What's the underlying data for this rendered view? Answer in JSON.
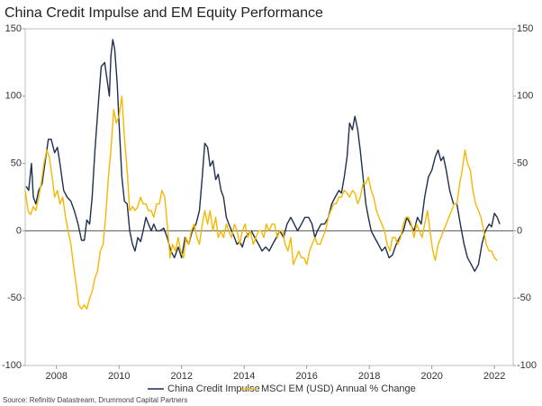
{
  "chart_data": {
    "type": "line",
    "title": "China Credit Impulse and EM Equity Performance",
    "source": "Source: Refinitiv Datastream, Drummond Capital Partners",
    "xlim": [
      2007,
      2022.6
    ],
    "xticks": [
      2008,
      2010,
      2012,
      2014,
      2016,
      2018,
      2020,
      2022
    ],
    "ylim": [
      -100,
      150
    ],
    "yticks": [
      -100,
      -50,
      0,
      50,
      100,
      150
    ],
    "y2lim": [
      -100,
      150
    ],
    "y2ticks": [
      -100,
      -50,
      0,
      50,
      100,
      150
    ],
    "zero_line": true,
    "legend": "bottom",
    "series": [
      {
        "name": "China Credit Impulse",
        "color": "#1f2f4f",
        "x": [
          2007.03,
          2007.11,
          2007.2,
          2007.26,
          2007.34,
          2007.43,
          2007.54,
          2007.66,
          2007.74,
          2007.83,
          2007.94,
          2008.03,
          2008.11,
          2008.23,
          2008.34,
          2008.46,
          2008.57,
          2008.69,
          2008.8,
          2008.89,
          2008.97,
          2009.06,
          2009.14,
          2009.23,
          2009.34,
          2009.43,
          2009.54,
          2009.63,
          2009.69,
          2009.74,
          2009.8,
          2009.86,
          2009.94,
          2010.0,
          2010.09,
          2010.17,
          2010.26,
          2010.34,
          2010.43,
          2010.51,
          2010.6,
          2010.69,
          2010.77,
          2010.86,
          2010.94,
          2011.03,
          2011.11,
          2011.2,
          2011.31,
          2011.43,
          2011.54,
          2011.66,
          2011.77,
          2011.89,
          2012.0,
          2012.11,
          2012.23,
          2012.34,
          2012.46,
          2012.57,
          2012.66,
          2012.74,
          2012.83,
          2012.91,
          2013.0,
          2013.09,
          2013.17,
          2013.26,
          2013.34,
          2013.43,
          2013.51,
          2013.6,
          2013.69,
          2013.77,
          2013.86,
          2013.94,
          2014.03,
          2014.11,
          2014.23,
          2014.34,
          2014.46,
          2014.57,
          2014.69,
          2014.8,
          2014.91,
          2015.03,
          2015.14,
          2015.26,
          2015.37,
          2015.49,
          2015.6,
          2015.71,
          2015.83,
          2015.94,
          2016.06,
          2016.17,
          2016.26,
          2016.34,
          2016.46,
          2016.57,
          2016.69,
          2016.8,
          2016.91,
          2017.03,
          2017.11,
          2017.2,
          2017.29,
          2017.37,
          2017.46,
          2017.54,
          2017.63,
          2017.71,
          2017.8,
          2017.89,
          2017.97,
          2018.06,
          2018.17,
          2018.29,
          2018.4,
          2018.51,
          2018.63,
          2018.74,
          2018.86,
          2018.97,
          2019.09,
          2019.2,
          2019.31,
          2019.43,
          2019.54,
          2019.66,
          2019.77,
          2019.89,
          2020.0,
          2020.11,
          2020.2,
          2020.29,
          2020.37,
          2020.46,
          2020.57,
          2020.69,
          2020.8,
          2020.91,
          2021.03,
          2021.14,
          2021.26,
          2021.37,
          2021.49,
          2021.6,
          2021.71,
          2021.83,
          2021.91,
          2022.0,
          2022.09,
          2022.17
        ],
        "values": [
          33,
          30,
          50,
          25,
          20,
          30,
          35,
          55,
          68,
          68,
          58,
          62,
          50,
          30,
          25,
          22,
          15,
          5,
          -7,
          -7,
          8,
          5,
          25,
          60,
          95,
          122,
          125,
          110,
          100,
          130,
          142,
          135,
          110,
          80,
          40,
          22,
          20,
          0,
          -10,
          -15,
          -5,
          -8,
          0,
          10,
          5,
          0,
          5,
          0,
          0,
          2,
          -5,
          -15,
          -20,
          -12,
          -20,
          -5,
          -10,
          0,
          5,
          15,
          40,
          65,
          62,
          48,
          52,
          38,
          42,
          30,
          25,
          10,
          5,
          0,
          -5,
          -10,
          -8,
          -12,
          -5,
          -3,
          0,
          -5,
          -10,
          -15,
          -12,
          -15,
          -10,
          -5,
          0,
          -5,
          5,
          10,
          5,
          0,
          5,
          10,
          10,
          5,
          -5,
          0,
          5,
          5,
          10,
          20,
          25,
          30,
          28,
          40,
          55,
          80,
          75,
          85,
          75,
          60,
          40,
          20,
          10,
          0,
          -5,
          -10,
          -15,
          -12,
          -20,
          -18,
          -10,
          -5,
          0,
          10,
          5,
          0,
          10,
          5,
          25,
          40,
          45,
          55,
          60,
          52,
          55,
          45,
          30,
          20,
          20,
          5,
          -10,
          -20,
          -25,
          -30,
          -25,
          -10,
          0,
          5,
          3,
          13,
          10,
          5
        ]
      },
      {
        "name": "MSCI EM (USD) Annual % Change",
        "color": "#f5b800",
        "axis": "y2",
        "x": [
          2007.0,
          2007.09,
          2007.17,
          2007.26,
          2007.34,
          2007.43,
          2007.51,
          2007.6,
          2007.69,
          2007.77,
          2007.86,
          2007.94,
          2008.03,
          2008.11,
          2008.2,
          2008.29,
          2008.37,
          2008.46,
          2008.54,
          2008.63,
          2008.71,
          2008.8,
          2008.89,
          2008.97,
          2009.06,
          2009.14,
          2009.23,
          2009.31,
          2009.4,
          2009.49,
          2009.57,
          2009.66,
          2009.74,
          2009.83,
          2009.91,
          2010.0,
          2010.09,
          2010.17,
          2010.26,
          2010.34,
          2010.43,
          2010.51,
          2010.6,
          2010.69,
          2010.77,
          2010.86,
          2010.94,
          2011.03,
          2011.11,
          2011.2,
          2011.29,
          2011.37,
          2011.46,
          2011.54,
          2011.63,
          2011.71,
          2011.8,
          2011.89,
          2011.97,
          2012.06,
          2012.14,
          2012.23,
          2012.31,
          2012.4,
          2012.49,
          2012.57,
          2012.66,
          2012.74,
          2012.83,
          2012.91,
          2013.0,
          2013.09,
          2013.17,
          2013.26,
          2013.34,
          2013.43,
          2013.51,
          2013.6,
          2013.69,
          2013.77,
          2013.86,
          2013.94,
          2014.03,
          2014.11,
          2014.2,
          2014.29,
          2014.37,
          2014.46,
          2014.54,
          2014.63,
          2014.71,
          2014.8,
          2014.89,
          2014.97,
          2015.06,
          2015.14,
          2015.23,
          2015.31,
          2015.4,
          2015.49,
          2015.57,
          2015.66,
          2015.74,
          2015.83,
          2015.91,
          2016.0,
          2016.09,
          2016.17,
          2016.26,
          2016.34,
          2016.43,
          2016.51,
          2016.6,
          2016.69,
          2016.77,
          2016.86,
          2016.94,
          2017.03,
          2017.11,
          2017.2,
          2017.29,
          2017.37,
          2017.46,
          2017.54,
          2017.63,
          2017.71,
          2017.8,
          2017.89,
          2017.97,
          2018.06,
          2018.14,
          2018.23,
          2018.31,
          2018.4,
          2018.49,
          2018.57,
          2018.66,
          2018.74,
          2018.83,
          2018.91,
          2019.0,
          2019.09,
          2019.17,
          2019.26,
          2019.34,
          2019.43,
          2019.51,
          2019.6,
          2019.69,
          2019.77,
          2019.86,
          2019.94,
          2020.03,
          2020.11,
          2020.2,
          2020.29,
          2020.37,
          2020.46,
          2020.54,
          2020.63,
          2020.71,
          2020.8,
          2020.89,
          2020.97,
          2021.06,
          2021.14,
          2021.23,
          2021.31,
          2021.4,
          2021.49,
          2021.57,
          2021.66,
          2021.74,
          2021.83,
          2021.91,
          2022.0,
          2022.09
        ],
        "values": [
          30,
          15,
          12,
          18,
          15,
          25,
          35,
          50,
          60,
          55,
          40,
          25,
          30,
          20,
          25,
          10,
          0,
          -10,
          -25,
          -40,
          -55,
          -58,
          -55,
          -58,
          -50,
          -45,
          -35,
          -30,
          -15,
          -10,
          10,
          40,
          60,
          90,
          80,
          85,
          100,
          70,
          45,
          15,
          18,
          15,
          18,
          25,
          20,
          20,
          15,
          15,
          10,
          20,
          20,
          30,
          25,
          5,
          -20,
          -10,
          -15,
          -5,
          -15,
          -20,
          -5,
          -10,
          0,
          5,
          -5,
          -10,
          5,
          15,
          5,
          15,
          0,
          10,
          -5,
          0,
          -5,
          5,
          0,
          -5,
          5,
          0,
          -10,
          0,
          5,
          -5,
          0,
          -10,
          -5,
          0,
          0,
          -5,
          5,
          0,
          5,
          5,
          -5,
          0,
          0,
          -10,
          -15,
          -5,
          -25,
          -20,
          -15,
          -20,
          -20,
          -25,
          -15,
          -10,
          -5,
          -10,
          -10,
          -5,
          0,
          10,
          15,
          20,
          20,
          25,
          25,
          30,
          28,
          25,
          30,
          28,
          20,
          25,
          35,
          35,
          40,
          30,
          25,
          15,
          10,
          5,
          0,
          -10,
          -15,
          -5,
          -5,
          -10,
          -5,
          5,
          10,
          10,
          5,
          -5,
          5,
          0,
          -5,
          5,
          15,
          0,
          -15,
          -22,
          -10,
          -5,
          0,
          5,
          10,
          15,
          20,
          20,
          35,
          45,
          60,
          50,
          45,
          30,
          20,
          15,
          10,
          0,
          -10,
          -15,
          -15,
          -20,
          -22
        ]
      }
    ]
  }
}
